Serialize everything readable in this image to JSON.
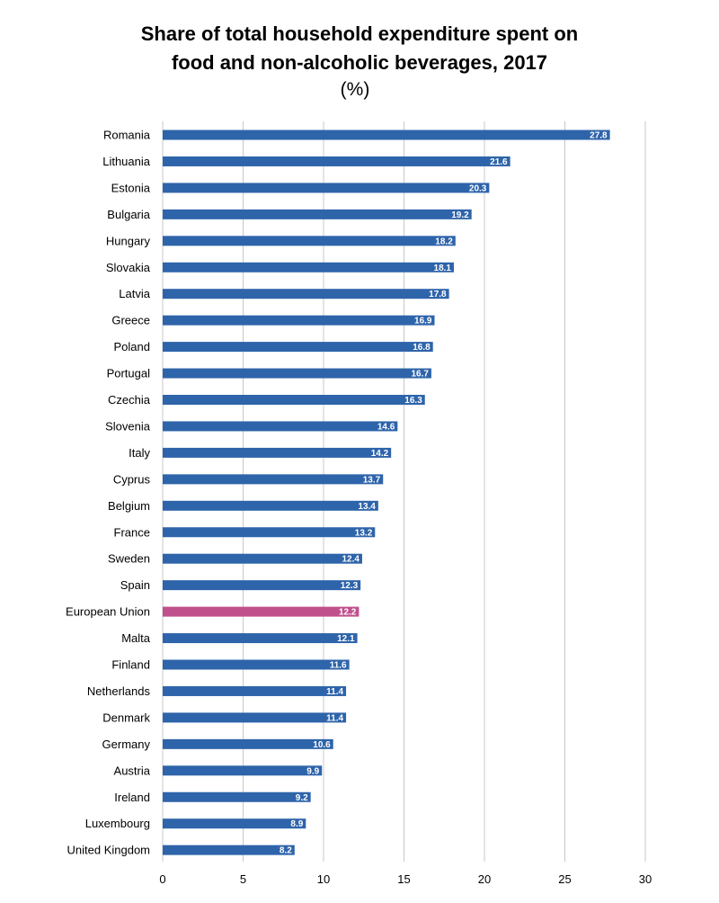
{
  "chart_data": {
    "type": "bar",
    "orientation": "horizontal",
    "title_line1": "Share of total household expenditure spent on",
    "title_line2": "food and non-alcoholic beverages, 2017",
    "subtitle": "(%)",
    "xlabel": "",
    "ylabel": "",
    "xlim": [
      0,
      30
    ],
    "xticks": [
      0,
      5,
      10,
      15,
      20,
      25,
      30
    ],
    "grid": "vertical",
    "legend": "none",
    "colors": {
      "default": "#2e64aa",
      "highlight": "#c0508c",
      "grid": "#c8c8c8"
    },
    "highlight_category": "European Union",
    "categories": [
      "Romania",
      "Lithuania",
      "Estonia",
      "Bulgaria",
      "Hungary",
      "Slovakia",
      "Latvia",
      "Greece",
      "Poland",
      "Portugal",
      "Czechia",
      "Slovenia",
      "Italy",
      "Cyprus",
      "Belgium",
      "France",
      "Sweden",
      "Spain",
      "European Union",
      "Malta",
      "Finland",
      "Netherlands",
      "Denmark",
      "Germany",
      "Austria",
      "Ireland",
      "Luxembourg",
      "United Kingdom"
    ],
    "values": [
      27.8,
      21.6,
      20.3,
      19.2,
      18.2,
      18.1,
      17.8,
      16.9,
      16.8,
      16.7,
      16.3,
      14.6,
      14.2,
      13.7,
      13.4,
      13.2,
      12.4,
      12.3,
      12.2,
      12.1,
      11.6,
      11.4,
      11.4,
      10.6,
      9.9,
      9.2,
      8.9,
      8.2
    ]
  }
}
